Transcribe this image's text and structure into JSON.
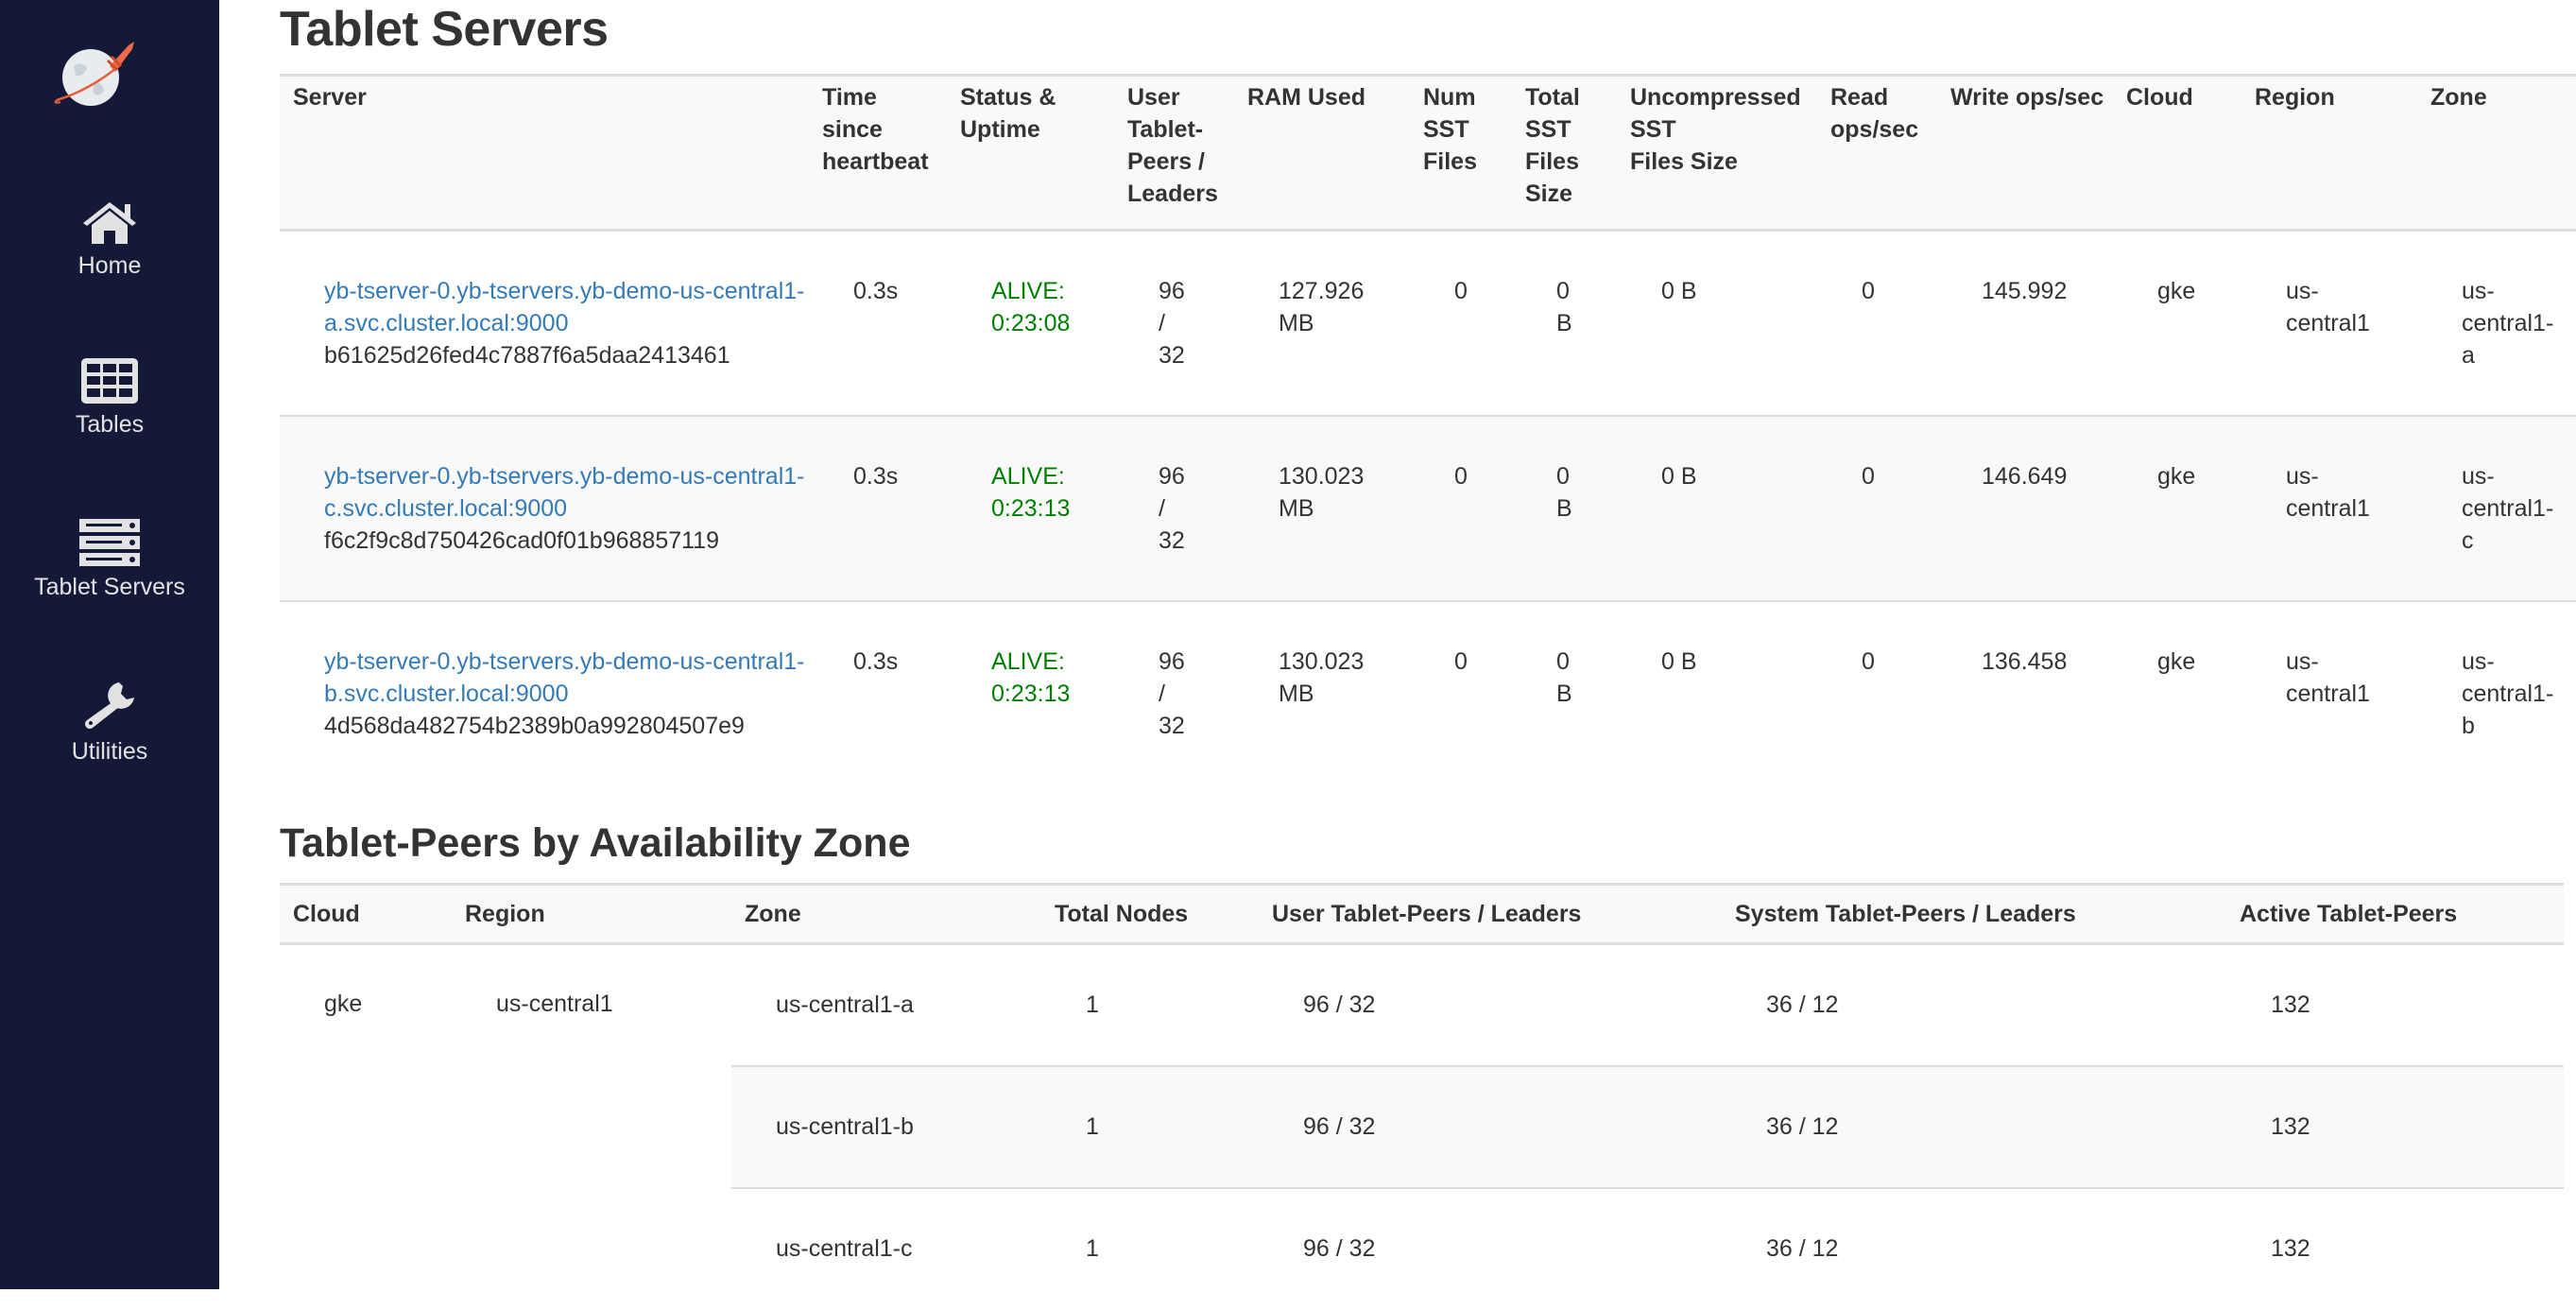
{
  "sidebar": {
    "logo": "yugabyte-rocket-globe-logo",
    "bg_color": "#151938",
    "items": [
      {
        "label": "Home",
        "icon": "home-icon"
      },
      {
        "label": "Tables",
        "icon": "table-icon"
      },
      {
        "label": "Tablet Servers",
        "icon": "server-icon"
      },
      {
        "label": "Utilities",
        "icon": "wrench-icon"
      }
    ]
  },
  "colors": {
    "link": "#337ab7",
    "alive": "#008000",
    "text": "#333333"
  },
  "servers": {
    "title": "Tablet Servers",
    "headers": [
      "Server",
      "Time since heartbeat",
      "Status & Uptime",
      "User Tablet-Peers / Leaders",
      "RAM Used",
      "Num SST Files",
      "Total SST Files Size",
      "Uncompressed SST\nFiles Size",
      "Read ops/sec",
      "Write ops/sec",
      "Cloud",
      "Region",
      "Zone"
    ],
    "rows": [
      {
        "host": "yb-tserver-0.yb-tservers.yb-demo-us-central1-a.svc.cluster.local:9000",
        "uuid": "b61625d26fed4c7887f6a5daa2413461",
        "heartbeat": "0.3s",
        "status": "ALIVE: 0:23:08",
        "peers": "96 / 32",
        "ram": "127.926 MB",
        "num_sst": "0",
        "total_sst": "0 B",
        "uncompressed": "0 B",
        "read": "0",
        "write": "145.992",
        "cloud": "gke",
        "region": "us-central1",
        "zone": "us-central1-a"
      },
      {
        "host": "yb-tserver-0.yb-tservers.yb-demo-us-central1-c.svc.cluster.local:9000",
        "uuid": "f6c2f9c8d750426cad0f01b968857119",
        "heartbeat": "0.3s",
        "status": "ALIVE: 0:23:13",
        "peers": "96 / 32",
        "ram": "130.023 MB",
        "num_sst": "0",
        "total_sst": "0 B",
        "uncompressed": "0 B",
        "read": "0",
        "write": "146.649",
        "cloud": "gke",
        "region": "us-central1",
        "zone": "us-central1-c"
      },
      {
        "host": "yb-tserver-0.yb-tservers.yb-demo-us-central1-b.svc.cluster.local:9000",
        "uuid": "4d568da482754b2389b0a992804507e9",
        "heartbeat": "0.3s",
        "status": "ALIVE: 0:23:13",
        "peers": "96 / 32",
        "ram": "130.023 MB",
        "num_sst": "0",
        "total_sst": "0 B",
        "uncompressed": "0 B",
        "read": "0",
        "write": "136.458",
        "cloud": "gke",
        "region": "us-central1",
        "zone": "us-central1-b"
      }
    ]
  },
  "zones": {
    "title": "Tablet-Peers by Availability Zone",
    "headers": [
      "Cloud",
      "Region",
      "Zone",
      "Total Nodes",
      "User Tablet-Peers / Leaders",
      "System Tablet-Peers / Leaders",
      "Active Tablet-Peers"
    ],
    "cloud": "gke",
    "region": "us-central1",
    "rows": [
      {
        "zone": "us-central1-a",
        "nodes": "1",
        "user": "96 / 32",
        "system": "36 / 12",
        "active": "132"
      },
      {
        "zone": "us-central1-b",
        "nodes": "1",
        "user": "96 / 32",
        "system": "36 / 12",
        "active": "132"
      },
      {
        "zone": "us-central1-c",
        "nodes": "1",
        "user": "96 / 32",
        "system": "36 / 12",
        "active": "132"
      }
    ]
  }
}
